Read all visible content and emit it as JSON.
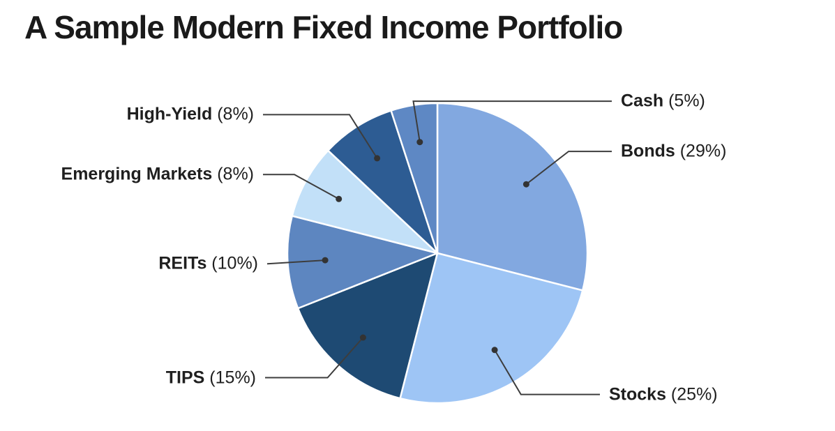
{
  "chart_data": {
    "type": "pie",
    "title": "A Sample Modern Fixed Income Portfolio",
    "legend_position": "callout-labels",
    "start_angle_deg": 0,
    "direction": "clockwise",
    "background_color": "#ffffff",
    "callout_style": {
      "line_color": "#3d3d3d",
      "dot_color": "#333333",
      "text_color": "#1f1f1f",
      "separator_color": "#ffffff"
    },
    "segments": [
      {
        "label": "Bonds",
        "value": 29,
        "display": "Bonds (29%)",
        "color": "#82a8e0"
      },
      {
        "label": "Stocks",
        "value": 25,
        "display": "Stocks (25%)",
        "color": "#9ec5f5"
      },
      {
        "label": "TIPS",
        "value": 15,
        "display": "TIPS (15%)",
        "color": "#1e4a73"
      },
      {
        "label": "REITs",
        "value": 10,
        "display": "REITs (10%)",
        "color": "#5d86c0"
      },
      {
        "label": "Emerging Markets",
        "value": 8,
        "display": "Emerging Markets (8%)",
        "color": "#c2e0f8"
      },
      {
        "label": "High-Yield",
        "value": 8,
        "display": "High-Yield (8%)",
        "color": "#2d5c93"
      },
      {
        "label": "Cash",
        "value": 5,
        "display": "Cash (5%)",
        "color": "#5e88c4"
      }
    ]
  }
}
